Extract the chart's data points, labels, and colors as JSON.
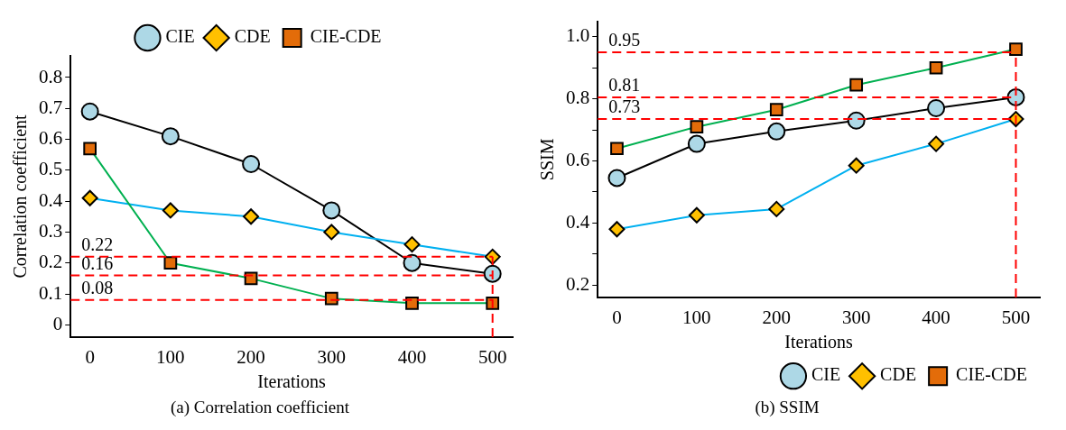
{
  "chart_data": [
    {
      "type": "line",
      "title": "(a) Correlation coefficient",
      "xlabel": "Iterations",
      "ylabel": "Correlation coefficient",
      "x": [
        0,
        100,
        200,
        300,
        400,
        500
      ],
      "xlim": [
        -24,
        525
      ],
      "xticks": [
        0,
        100,
        200,
        300,
        400,
        500
      ],
      "ylim": [
        -0.04,
        0.87
      ],
      "yticks": [
        0,
        0.1,
        0.2,
        0.3,
        0.4,
        0.5,
        0.6,
        0.7,
        0.8
      ],
      "series": [
        {
          "name": "CIE",
          "color": "#000000",
          "marker": "circle",
          "values": [
            0.69,
            0.61,
            0.52,
            0.37,
            0.2,
            0.165
          ]
        },
        {
          "name": "CDE",
          "color": "#00b0f0",
          "marker": "diamond",
          "values": [
            0.41,
            0.37,
            0.35,
            0.3,
            0.26,
            0.22
          ]
        },
        {
          "name": "CIE-CDE",
          "color": "#00b050",
          "marker": "square",
          "values": [
            0.57,
            0.2,
            0.15,
            0.085,
            0.07,
            0.07
          ]
        }
      ],
      "ref_lines": [
        {
          "axis": "y",
          "value": 0.22,
          "label": "0.22",
          "color": "#ff0000",
          "line_style": "dashed"
        },
        {
          "axis": "y",
          "value": 0.16,
          "label": "0.16",
          "color": "#ff0000",
          "line_style": "dashed"
        },
        {
          "axis": "y",
          "value": 0.08,
          "label": "0.08",
          "color": "#ff0000",
          "line_style": "dashed"
        },
        {
          "axis": "x",
          "value": 500,
          "color": "#ff0000",
          "line_style": "dashed"
        }
      ],
      "legend": "top",
      "grid": false
    },
    {
      "type": "line",
      "title": "(b) SSIM",
      "xlabel": "Iterations",
      "ylabel": "SSIM",
      "x": [
        0,
        100,
        200,
        300,
        400,
        500
      ],
      "xlim": [
        -24,
        530
      ],
      "xticks": [
        0,
        100,
        200,
        300,
        400,
        500
      ],
      "ylim": [
        0.16,
        1.05
      ],
      "yticks": [
        0.2,
        {
          "value": 0.3,
          "label": null
        },
        0.4,
        {
          "value": 0.5,
          "label": null
        },
        0.6,
        {
          "value": 0.7,
          "label": null
        },
        0.8,
        {
          "value": 0.9,
          "label": null
        },
        {
          "value": 1.0,
          "label": "1.0"
        }
      ],
      "series": [
        {
          "name": "CIE",
          "color": "#000000",
          "marker": "circle",
          "values": [
            0.545,
            0.655,
            0.695,
            0.73,
            0.77,
            0.805
          ]
        },
        {
          "name": "CDE",
          "color": "#00b0f0",
          "marker": "diamond",
          "values": [
            0.38,
            0.425,
            0.445,
            0.585,
            0.655,
            0.735
          ]
        },
        {
          "name": "CIE-CDE",
          "color": "#00b050",
          "marker": "square",
          "values": [
            0.64,
            0.71,
            0.765,
            0.845,
            0.9,
            0.96
          ]
        }
      ],
      "ref_lines": [
        {
          "axis": "y",
          "value": 0.95,
          "label": "0.95",
          "color": "#ff0000",
          "line_style": "dashed"
        },
        {
          "axis": "y",
          "value": 0.805,
          "label": "0.81",
          "color": "#ff0000",
          "line_style": "dashed"
        },
        {
          "axis": "y",
          "value": 0.735,
          "label": "0.73",
          "color": "#ff0000",
          "line_style": "dashed"
        },
        {
          "axis": "x",
          "value": 500,
          "color": "#ff0000",
          "line_style": "dashed"
        }
      ],
      "legend": "bottom right",
      "grid": false
    }
  ]
}
